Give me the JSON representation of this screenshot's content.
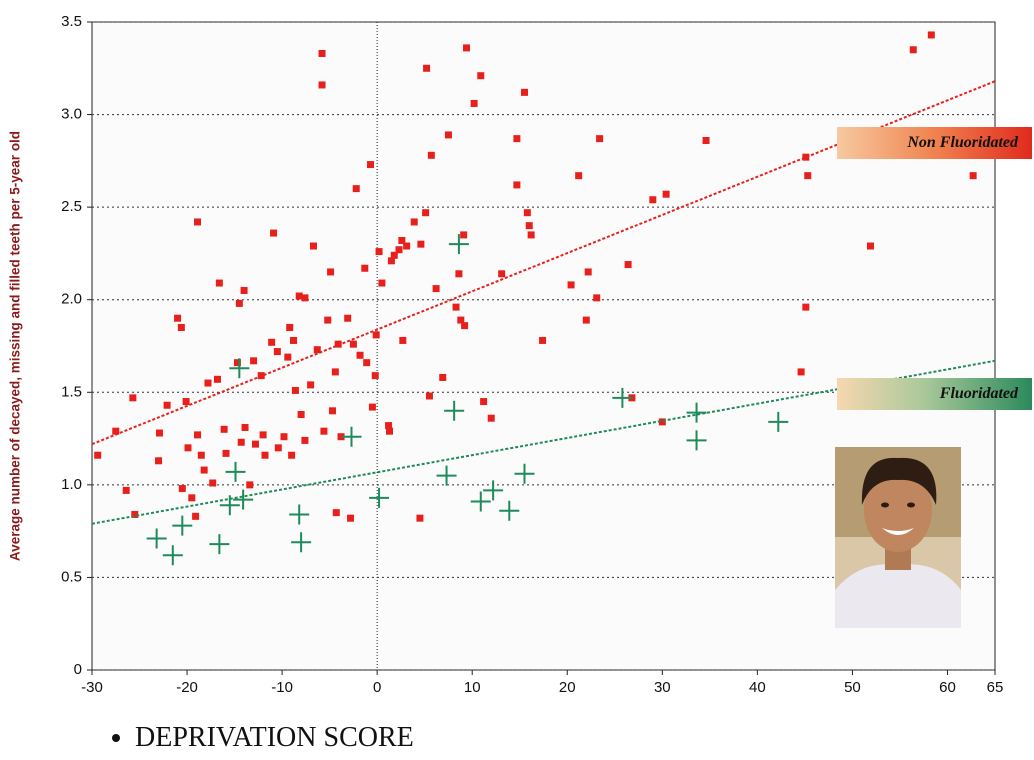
{
  "chart_data": {
    "type": "scatter",
    "xlabel": "DEPRIVATION SCORE",
    "ylabel": "Average number of decayed, missing and filled teeth per 5-year old",
    "xlim": [
      -30,
      65
    ],
    "ylim": [
      0,
      3.5
    ],
    "xticks": [
      -30,
      -20,
      -10,
      0,
      10,
      20,
      30,
      40,
      50,
      60,
      65
    ],
    "yticks": [
      0,
      0.5,
      {
        "value": 1,
        "label": "1.0"
      },
      1.5,
      {
        "value": 2,
        "label": "2.0"
      },
      2.5,
      {
        "value": 3,
        "label": "3.0"
      },
      3.5
    ],
    "grid": true,
    "series": [
      {
        "name": "Non Fluoridated",
        "color": "#e8201c",
        "marker": "square",
        "x": [
          -29.4,
          -27.5,
          -26.4,
          -25.7,
          -25.5,
          -22.9,
          -23.0,
          -22.1,
          -21.0,
          -20.6,
          -20.1,
          -20.5,
          -19.9,
          -19.5,
          -18.9,
          -18.9,
          -18.5,
          -18.2,
          -19.1,
          -17.8,
          -17.3,
          -16.8,
          -16.6,
          -16.1,
          -15.9,
          -14.7,
          -14.5,
          -14.0,
          -14.3,
          -13.9,
          -13.4,
          -13.0,
          -12.8,
          -12.2,
          -12.0,
          -11.8,
          -11.1,
          -10.9,
          -10.5,
          -10.4,
          -9.8,
          -9.4,
          -9.2,
          -8.8,
          -9.0,
          -8.6,
          -8.2,
          -8.0,
          -7.6,
          -7.6,
          -7.0,
          -6.7,
          -6.3,
          -5.8,
          -5.8,
          -5.6,
          -5.2,
          -4.9,
          -4.7,
          -4.4,
          -4.3,
          -4.1,
          -3.8,
          -3.1,
          -2.8,
          -2.5,
          -2.2,
          -1.8,
          -1.3,
          -1.1,
          -0.7,
          -0.5,
          -0.2,
          -0.1,
          0.2,
          0.5,
          1.2,
          1.3,
          1.5,
          1.8,
          2.3,
          2.6,
          2.7,
          3.1,
          3.9,
          4.5,
          4.6,
          5.1,
          5.2,
          5.5,
          5.7,
          6.2,
          6.9,
          7.5,
          8.3,
          8.6,
          8.8,
          9.1,
          9.2,
          9.4,
          10.2,
          10.9,
          11.2,
          12.0,
          13.1,
          14.7,
          14.7,
          15.5,
          15.8,
          16.0,
          16.2,
          17.4,
          20.4,
          21.2,
          22.0,
          22.2,
          23.1,
          23.4,
          26.4,
          26.8,
          29.0,
          30.0,
          30.4,
          34.6,
          44.6,
          45.1,
          45.3,
          45.1,
          51.9,
          56.4,
          58.3,
          62.7
        ],
        "values": [
          1.16,
          1.29,
          0.97,
          1.47,
          0.84,
          1.28,
          1.13,
          1.43,
          1.9,
          1.85,
          1.45,
          0.98,
          1.2,
          0.93,
          2.42,
          1.27,
          1.16,
          1.08,
          0.83,
          1.55,
          1.01,
          1.57,
          2.09,
          1.3,
          1.17,
          1.66,
          1.98,
          2.05,
          1.23,
          1.31,
          1.0,
          1.67,
          1.22,
          1.59,
          1.27,
          1.16,
          1.77,
          2.36,
          1.72,
          1.2,
          1.26,
          1.69,
          1.85,
          1.78,
          1.16,
          1.51,
          2.02,
          1.38,
          2.01,
          1.24,
          1.54,
          2.29,
          1.73,
          3.33,
          3.16,
          1.29,
          1.89,
          2.15,
          1.4,
          1.61,
          0.85,
          1.76,
          1.26,
          1.9,
          0.82,
          1.76,
          2.6,
          1.7,
          2.17,
          1.66,
          2.73,
          1.42,
          1.59,
          1.81,
          2.26,
          2.09,
          1.32,
          1.29,
          2.21,
          2.24,
          2.27,
          2.32,
          1.78,
          2.29,
          2.42,
          0.82,
          2.3,
          2.47,
          3.25,
          1.48,
          2.78,
          2.06,
          1.58,
          2.89,
          1.96,
          2.14,
          1.89,
          2.35,
          1.86,
          3.36,
          3.06,
          3.21,
          1.45,
          1.36,
          2.14,
          2.87,
          2.62,
          3.12,
          2.47,
          2.4,
          2.35,
          1.78,
          2.08,
          2.67,
          1.89,
          2.15,
          2.01,
          2.87,
          2.19,
          1.47,
          2.54,
          1.34,
          2.57,
          2.86,
          1.61,
          2.77,
          2.67,
          1.96,
          2.29,
          3.35,
          3.43,
          2.67
        ],
        "trendline": {
          "x": [
            -30,
            65
          ],
          "values": [
            1.22,
            3.18
          ]
        }
      },
      {
        "name": "Fluoridated",
        "color": "#1f8a5a",
        "marker": "cross",
        "x": [
          -23.2,
          -21.5,
          -20.5,
          -16.6,
          -15.5,
          -14.9,
          -14.5,
          -14.1,
          -8.2,
          -8.0,
          -2.7,
          0.2,
          7.3,
          8.1,
          8.6,
          10.9,
          12.2,
          13.9,
          15.5,
          25.8,
          33.6,
          33.6,
          42.2
        ],
        "values": [
          0.71,
          0.62,
          0.78,
          0.68,
          0.89,
          1.07,
          1.63,
          0.92,
          0.84,
          0.69,
          1.26,
          0.93,
          1.05,
          1.4,
          2.3,
          0.91,
          0.97,
          0.86,
          1.06,
          1.47,
          1.24,
          1.39,
          1.34
        ],
        "trendline": {
          "x": [
            -30,
            65
          ],
          "values": [
            0.79,
            1.67
          ]
        }
      }
    ]
  }
}
